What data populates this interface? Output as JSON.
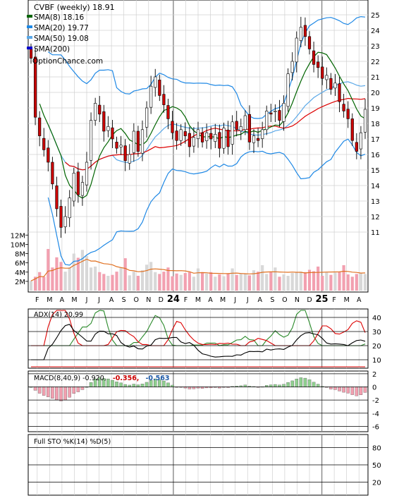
{
  "header": {
    "ticker_title": "CVBF (weekly) 18.91",
    "legend": [
      {
        "label": "SMA(8) 18.16",
        "color": "#006400"
      },
      {
        "label": "SMA(20) 19.77",
        "color": "#1e88e5"
      },
      {
        "label": "SMA(50) 19.08",
        "color": "#5aa8e8"
      },
      {
        "label": "SMA(200)",
        "color": "#0000cc"
      }
    ],
    "watermark": "OptionChance.com"
  },
  "colors": {
    "up": "#ffffff",
    "down": "#cc0000",
    "up_hollow_border": "#000000",
    "grid": "#cccccc",
    "sma8": "#006400",
    "bollinger": "#1e88e5",
    "sma50": "#dd0000",
    "volume_up": "#d8d8d8",
    "volume_down": "#f2a0b0",
    "volume_avg": "#e07020"
  },
  "x_axis": {
    "months": [
      "F",
      "M",
      "A",
      "M",
      "J",
      "J",
      "A",
      "S",
      "O",
      "N",
      "D",
      "24",
      "F",
      "M",
      "A",
      "M",
      "J",
      "J",
      "A",
      "S",
      "O",
      "N",
      "D",
      "25",
      "F",
      "M",
      "A"
    ],
    "bold_years": [
      "24",
      "25"
    ]
  },
  "chart_data": [
    {
      "type": "candlestick",
      "title": "CVBF (weekly) 18.91",
      "y_ticks": [
        11,
        12,
        13,
        14,
        15,
        16,
        17,
        18,
        19,
        20,
        21,
        22,
        23,
        24,
        25
      ],
      "ylim": [
        10.5,
        25.5
      ],
      "close": [
        22.2,
        18.4,
        17.2,
        16.3,
        15.5,
        14.1,
        12.5,
        11.3,
        12.0,
        13.2,
        14.8,
        13.4,
        14.2,
        15.5,
        18.2,
        19.3,
        18.6,
        17.5,
        17.8,
        17.0,
        16.4,
        16.6,
        15.6,
        16.0,
        17.5,
        16.2,
        17.6,
        19.0,
        20.4,
        21.0,
        19.8,
        19.2,
        18.3,
        17.4,
        16.9,
        17.6,
        17.2,
        16.5,
        17.1,
        17.6,
        16.8,
        17.4,
        17.0,
        17.3,
        16.4,
        17.7,
        16.5,
        18.1,
        17.6,
        17.8,
        18.5,
        16.8,
        17.2,
        16.9,
        17.6,
        18.8,
        18.6,
        18.8,
        18.2,
        19.3,
        21.2,
        22.0,
        23.5,
        24.2,
        23.6,
        22.8,
        21.8,
        21.6,
        20.9,
        21.1,
        20.2,
        20.6,
        19.4,
        18.8,
        18.3,
        16.9,
        16.2,
        17.4,
        18.91
      ],
      "volume_y_ticks": [
        "2M",
        "4M",
        "6M",
        "8M",
        "10M",
        "12M"
      ],
      "volume_millions": [
        2.1,
        3.0,
        4.0,
        3.0,
        9.0,
        5.0,
        7.2,
        6.2,
        4.1,
        5.0,
        8.0,
        7.1,
        8.8,
        7.5,
        5.0,
        5.2,
        4.0,
        3.6,
        3.2,
        3.4,
        4.1,
        5.0,
        7.0,
        3.3,
        4.1,
        3.2,
        4.4,
        5.6,
        6.2,
        4.0,
        3.6,
        4.1,
        5.0,
        3.1,
        3.7,
        3.4,
        3.8,
        4.0,
        3.0,
        4.8,
        4.0,
        3.7,
        4.0,
        3.0,
        3.5,
        3.1,
        3.7,
        4.8,
        3.4,
        3.8,
        3.6,
        3.3,
        4.4,
        4.1,
        5.5,
        3.6,
        4.0,
        5.0,
        3.0,
        3.5,
        3.2,
        3.8,
        3.9,
        4.1,
        4.0,
        4.5,
        4.2,
        5.2,
        3.2,
        4.0,
        3.4,
        3.9,
        4.0,
        5.5,
        3.5,
        3.0,
        3.6,
        3.8,
        3.6
      ]
    },
    {
      "type": "line",
      "title": "ADX(14) 20.99",
      "y_ticks": [
        10,
        20,
        30,
        40
      ],
      "ylim": [
        5,
        45
      ]
    },
    {
      "type": "line",
      "title_prefix": "MACD(8,40,9) -0.920,",
      "title_red": "-0.356,",
      "title_blue": "-0.563",
      "y_ticks": [
        2,
        0,
        -2,
        -4,
        -6
      ],
      "ylim": [
        -6.6,
        2.2
      ]
    },
    {
      "type": "line",
      "title": "Full STO %K(14) %D(5)",
      "y_ticks": [
        20,
        50,
        80
      ],
      "ylim": [
        0,
        100
      ]
    }
  ]
}
